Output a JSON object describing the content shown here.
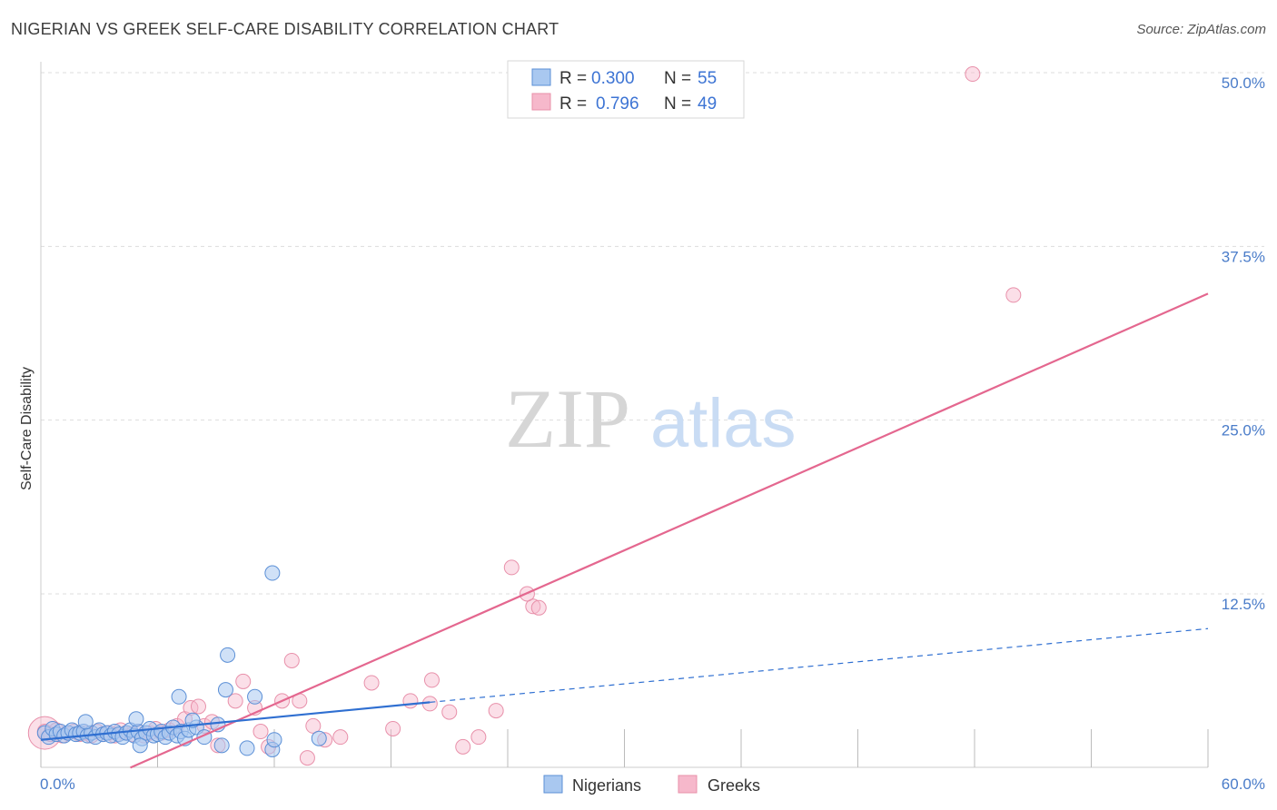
{
  "title": "NIGERIAN VS GREEK SELF-CARE DISABILITY CORRELATION CHART",
  "source": "Source: ZipAtlas.com",
  "watermark": {
    "zip": "ZIP",
    "atlas": "atlas"
  },
  "colors": {
    "nigerians_fill": "#a9c8f0",
    "nigerians_stroke": "#5b8fd6",
    "nigerians_line": "#2f6fd1",
    "greeks_fill": "#f6b8cb",
    "greeks_stroke": "#e890aa",
    "greeks_line": "#e4678f",
    "tick": "#4a7cc9",
    "grid": "#dddddd"
  },
  "legend": {
    "nigerians": {
      "r_label": "R =",
      "r_value": "0.300",
      "n_label": "N =",
      "n_value": "55"
    },
    "greeks": {
      "r_label": "R =",
      "r_value": "0.796",
      "n_label": "N =",
      "n_value": "49"
    }
  },
  "chart_data": {
    "type": "scatter",
    "title": "NIGERIAN VS GREEK SELF-CARE DISABILITY CORRELATION CHART",
    "xlabel": "",
    "ylabel": "Self-Care Disability",
    "xlim": [
      0,
      60
    ],
    "ylim": [
      0,
      52
    ],
    "x_tick_labels": [
      "0.0%",
      "60.0%"
    ],
    "y_ticks": [
      12.5,
      25.0,
      37.5,
      50.0
    ],
    "y_tick_labels": [
      "12.5%",
      "25.0%",
      "37.5%",
      "50.0%"
    ],
    "x_gridlines": [
      0,
      6,
      12,
      18,
      24,
      30,
      36,
      42,
      48,
      54,
      60
    ],
    "grid": true,
    "legend_position": "top-center",
    "series": [
      {
        "name": "Nigerians",
        "r": 0.3,
        "n": 55,
        "trend": {
          "solid_x": [
            0,
            20
          ],
          "dashed_x": [
            20,
            60
          ],
          "y_at_0": 2.0,
          "y_at_20": 4.7,
          "y_at_60": 10.0
        },
        "points": [
          [
            0.2,
            2.5
          ],
          [
            0.4,
            2.2
          ],
          [
            0.6,
            2.8
          ],
          [
            0.8,
            2.4
          ],
          [
            1.0,
            2.6
          ],
          [
            1.2,
            2.3
          ],
          [
            1.4,
            2.5
          ],
          [
            1.6,
            2.7
          ],
          [
            1.8,
            2.4
          ],
          [
            2.0,
            2.5
          ],
          [
            2.2,
            2.6
          ],
          [
            2.4,
            2.3
          ],
          [
            2.6,
            2.5
          ],
          [
            2.8,
            2.2
          ],
          [
            3.0,
            2.7
          ],
          [
            3.2,
            2.4
          ],
          [
            3.4,
            2.5
          ],
          [
            3.6,
            2.3
          ],
          [
            3.8,
            2.6
          ],
          [
            4.0,
            2.4
          ],
          [
            4.2,
            2.2
          ],
          [
            4.4,
            2.5
          ],
          [
            4.6,
            2.7
          ],
          [
            4.8,
            2.3
          ],
          [
            5.0,
            2.6
          ],
          [
            5.2,
            2.1
          ],
          [
            5.4,
            2.5
          ],
          [
            5.6,
            2.8
          ],
          [
            5.8,
            2.3
          ],
          [
            6.0,
            2.4
          ],
          [
            6.2,
            2.6
          ],
          [
            6.4,
            2.2
          ],
          [
            6.6,
            2.5
          ],
          [
            6.8,
            2.9
          ],
          [
            7.0,
            2.3
          ],
          [
            7.2,
            2.6
          ],
          [
            7.4,
            2.1
          ],
          [
            7.6,
            2.7
          ],
          [
            8.0,
            2.9
          ],
          [
            8.4,
            2.2
          ],
          [
            2.3,
            3.3
          ],
          [
            4.9,
            3.5
          ],
          [
            7.8,
            3.4
          ],
          [
            9.1,
            3.1
          ],
          [
            5.1,
            1.6
          ],
          [
            9.3,
            1.6
          ],
          [
            10.6,
            1.4
          ],
          [
            11.9,
            1.3
          ],
          [
            12.0,
            2.0
          ],
          [
            14.3,
            2.1
          ],
          [
            7.1,
            5.1
          ],
          [
            9.5,
            5.6
          ],
          [
            11.0,
            5.1
          ],
          [
            9.6,
            8.1
          ],
          [
            11.9,
            14.0
          ]
        ]
      },
      {
        "name": "Greeks",
        "r": 0.796,
        "n": 49,
        "trend": {
          "x": [
            4.6,
            60
          ],
          "y_at_start": 0.0,
          "y_at_end": 34.1
        },
        "points": [
          [
            0.2,
            2.6
          ],
          [
            0.5,
            2.4
          ],
          [
            0.8,
            2.7
          ],
          [
            1.1,
            2.3
          ],
          [
            1.4,
            2.5
          ],
          [
            1.7,
            2.6
          ],
          [
            2.0,
            2.4
          ],
          [
            2.3,
            2.5
          ],
          [
            2.6,
            2.3
          ],
          [
            2.9,
            2.6
          ],
          [
            3.2,
            2.4
          ],
          [
            3.5,
            2.5
          ],
          [
            3.8,
            2.3
          ],
          [
            4.1,
            2.7
          ],
          [
            4.4,
            2.5
          ],
          [
            4.7,
            2.4
          ],
          [
            5.0,
            2.6
          ],
          [
            5.3,
            2.3
          ],
          [
            5.6,
            2.5
          ],
          [
            5.9,
            2.8
          ],
          [
            6.2,
            2.5
          ],
          [
            6.6,
            2.7
          ],
          [
            7.0,
            3.0
          ],
          [
            7.4,
            3.5
          ],
          [
            7.7,
            4.3
          ],
          [
            8.1,
            4.4
          ],
          [
            8.4,
            3.0
          ],
          [
            8.8,
            3.3
          ],
          [
            9.1,
            1.6
          ],
          [
            10.0,
            4.8
          ],
          [
            10.4,
            6.2
          ],
          [
            11.0,
            4.3
          ],
          [
            11.3,
            2.6
          ],
          [
            11.7,
            1.5
          ],
          [
            12.4,
            4.8
          ],
          [
            12.9,
            7.7
          ],
          [
            13.3,
            4.8
          ],
          [
            13.7,
            0.7
          ],
          [
            14.0,
            3.0
          ],
          [
            14.6,
            2.0
          ],
          [
            15.4,
            2.2
          ],
          [
            17.0,
            6.1
          ],
          [
            19.0,
            4.8
          ],
          [
            20.1,
            6.3
          ],
          [
            21.0,
            4.0
          ],
          [
            21.7,
            1.5
          ],
          [
            22.5,
            2.2
          ],
          [
            25.3,
            11.6
          ],
          [
            47.9,
            49.9
          ]
        ],
        "extra_points": [
          [
            24.2,
            14.4
          ],
          [
            25.0,
            12.5
          ],
          [
            25.6,
            11.5
          ],
          [
            50.0,
            34.0
          ],
          [
            23.4,
            4.1
          ],
          [
            20.0,
            4.6
          ],
          [
            18.1,
            2.8
          ]
        ]
      }
    ]
  },
  "bottom_legend": {
    "nigerians": "Nigerians",
    "greeks": "Greeks"
  }
}
